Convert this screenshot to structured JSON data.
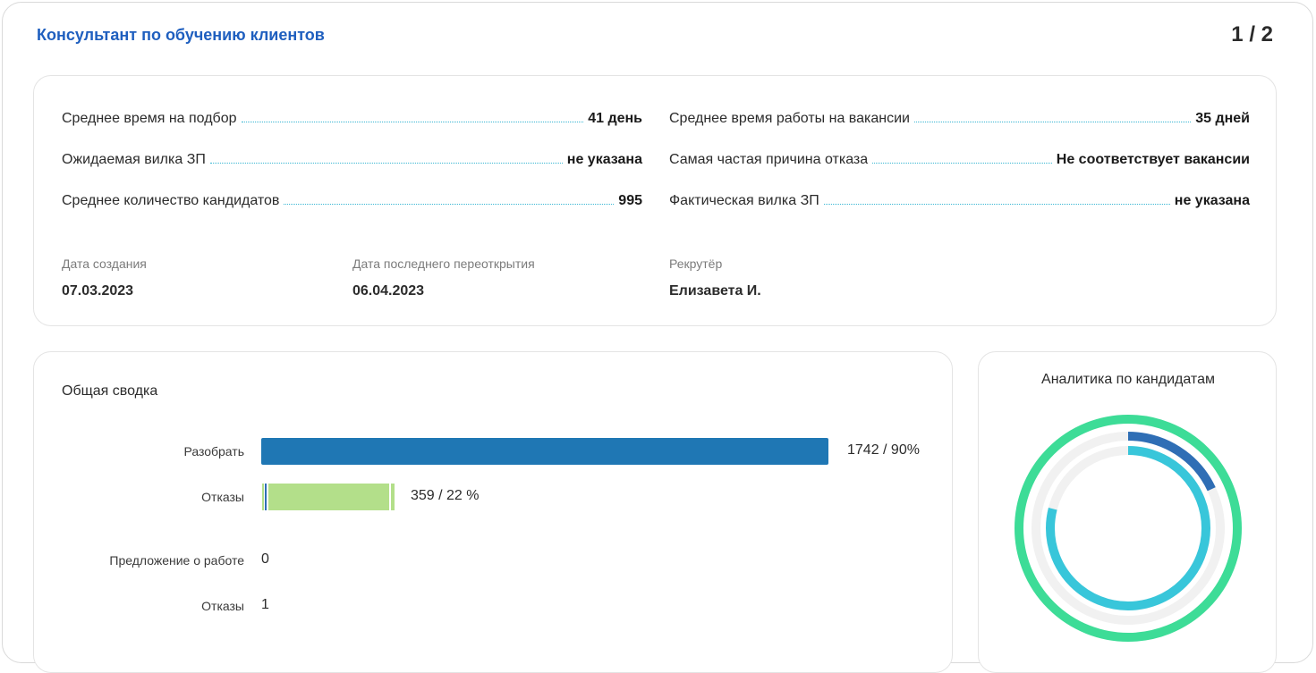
{
  "header": {
    "title": "Консультант по обучению клиентов",
    "pager": "1 / 2"
  },
  "stats": {
    "left": [
      {
        "label": "Среднее время на подбор",
        "value": "41 день"
      },
      {
        "label": "Ожидаемая вилка ЗП",
        "value": "не указана"
      },
      {
        "label": "Среднее количество кандидатов",
        "value": "995"
      }
    ],
    "right": [
      {
        "label": "Среднее время работы на вакансии",
        "value": "35 дней"
      },
      {
        "label": "Самая частая причина отказа",
        "value": "Не соответствует вакансии"
      },
      {
        "label": "Фактическая вилка ЗП",
        "value": "не указана"
      }
    ]
  },
  "meta": {
    "created_label": "Дата создания",
    "created_value": "07.03.2023",
    "reopened_label": "Дата последнего переоткрытия",
    "reopened_value": "06.04.2023",
    "recruiter_label": "Рекрутёр",
    "recruiter_value": "Елизавета И."
  },
  "summary": {
    "title": "Общая сводка",
    "rows": [
      {
        "label": "Разобрать",
        "value": "1742 / 90%",
        "fraction": 0.9,
        "color": "#1f77b4"
      },
      {
        "label": "Отказы",
        "value": "359 / 22 %",
        "fraction": 0.22,
        "color": "#b3df8a"
      },
      {
        "label": "Предложение о работе",
        "value": "0"
      },
      {
        "label": "Отказы",
        "value": "1"
      }
    ]
  },
  "analytics": {
    "title": "Аналитика по кандидатам",
    "rings": [
      {
        "name": "outer",
        "fraction": 1.0,
        "color": "#3ddc97"
      },
      {
        "name": "middle",
        "fraction": 0.18,
        "color": "#2f6eb5"
      },
      {
        "name": "inner",
        "fraction": 0.79,
        "color": "#38c6da"
      }
    ],
    "track_color": "#f1f1f1"
  }
}
